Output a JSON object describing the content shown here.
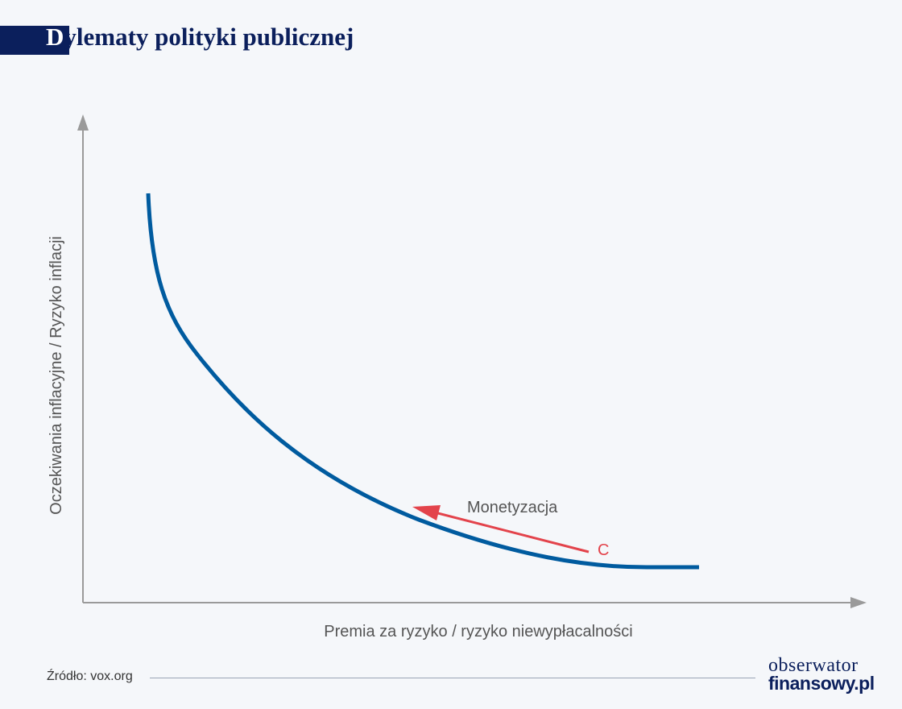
{
  "title": "Dylematy polityki publicznej",
  "diagram": {
    "y_axis_label": "Oczekiwania inflacyjne / Ryzyko inflacji",
    "x_axis_label": "Premia za ryzyko / ryzyko niewypłacalności",
    "arrow_label": "Monetyzacja",
    "point_label": "C",
    "colors": {
      "curve": "#005b9f",
      "arrow": "#e3434b",
      "axes": "#9a9a9a",
      "brand": "#0b1f5c"
    }
  },
  "footer": {
    "source": "Źródło: vox.org",
    "logo_line1": "obserwator",
    "logo_line2": "finansowy.pl"
  }
}
